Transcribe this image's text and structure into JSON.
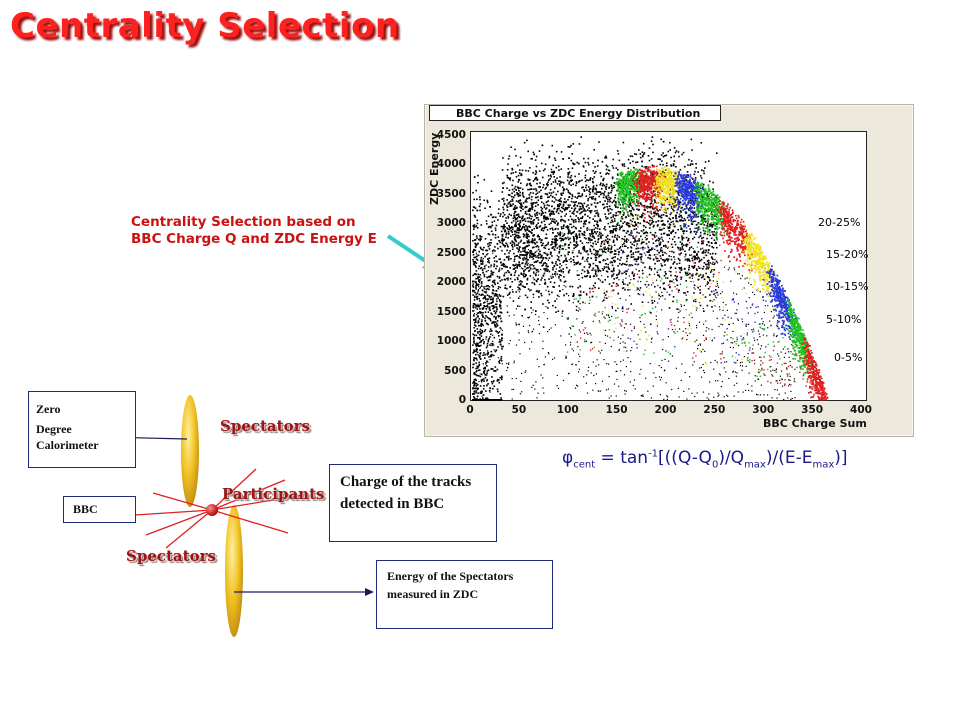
{
  "title": "Centrality Selection",
  "caption": {
    "line1": "Centrality Selection based on",
    "line2": "BBC Charge Q and ZDC Energy E"
  },
  "chart": {
    "title": "BBC Charge vs ZDC Energy Distribution",
    "xlabel": "BBC Charge Sum",
    "ylabel": "ZDC Energy",
    "x_ticks": [
      "0",
      "50",
      "100",
      "150",
      "200",
      "250",
      "300",
      "350",
      "400"
    ],
    "y_ticks": [
      "0",
      "500",
      "1000",
      "1500",
      "2000",
      "2500",
      "3000",
      "3500",
      "4000",
      "4500"
    ],
    "band_labels": [
      {
        "text": "20-25%",
        "color": "#e02020"
      },
      {
        "text": "15-20%",
        "color": "#e8d020"
      },
      {
        "text": "10-15%",
        "color": "#2a3ad8"
      },
      {
        "text": "5-10%",
        "color": "#20b020"
      },
      {
        "text": "0-5%",
        "color": "#e02020"
      }
    ]
  },
  "chart_data": {
    "type": "scatter",
    "title": "BBC Charge vs ZDC Energy Distribution",
    "xlabel": "BBC Charge Sum",
    "ylabel": "ZDC Energy",
    "xlim": [
      0,
      400
    ],
    "ylim": [
      0,
      4500
    ],
    "series": [
      {
        "name": "20-25%",
        "color": "#e02020"
      },
      {
        "name": "15-20%",
        "color": "#e8d020"
      },
      {
        "name": "10-15%",
        "color": "#2a3ad8"
      },
      {
        "name": "5-10%",
        "color": "#20b020"
      },
      {
        "name": "0-5%",
        "color": "#e02020"
      }
    ]
  },
  "formula": {
    "phi": "φ",
    "sub1": "cent",
    "eq": " = tan",
    "sup1": "-1",
    "p1": "[((Q-Q",
    "sub2": "0",
    "p2": ")/Q",
    "sub3": "max",
    "p3": ")/(E-E",
    "sub4": "max",
    "p4": ")]"
  },
  "diagram": {
    "zero_box": {
      "line1": "Zero",
      "line2": "Degree",
      "line3": "Calorimeter"
    },
    "bbc_box": "BBC",
    "charge_box": "Charge of the tracks detected in BBC",
    "energy_box": "Energy of the Spectators measured in ZDC",
    "spectators_top": "Spectators",
    "participants": "Participants",
    "spectators_bottom": "Spectators"
  },
  "colors": {
    "title": "#ff2020",
    "caption": "#cc1111",
    "arrow": "#33cccc",
    "band_green": "#20c020",
    "band_red": "#e02020",
    "band_yellow": "#f0e020",
    "band_blue": "#2a3ad8",
    "nucleus": "#f0c020"
  }
}
